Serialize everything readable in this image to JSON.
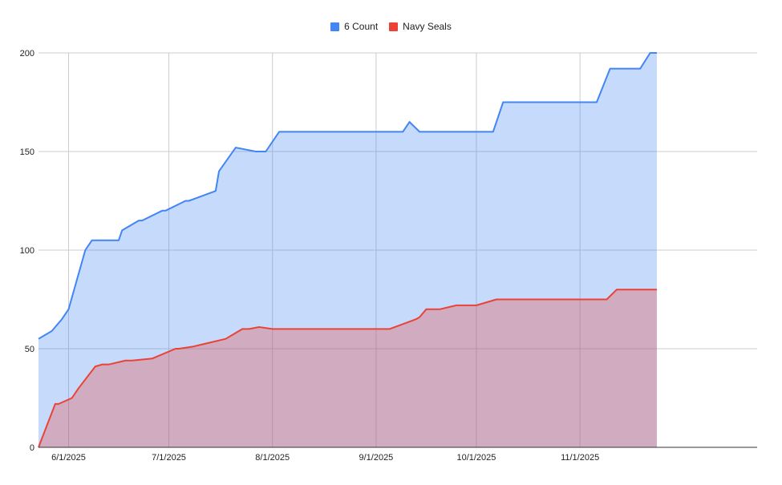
{
  "legend": [
    {
      "label": "6 Count",
      "color": "#4285f4"
    },
    {
      "label": "Navy Seals",
      "color": "#ea4335"
    }
  ],
  "chart_data": {
    "type": "area",
    "title": "",
    "xlabel": "",
    "ylabel": "",
    "ylim": [
      0,
      200
    ],
    "xlim": [
      "2025-05-23",
      "2025-12-24"
    ],
    "y_ticks": [
      "0",
      "50",
      "100",
      "150",
      "200"
    ],
    "x_ticks": [
      {
        "date": "2025-06-01",
        "label": "6/1/2025"
      },
      {
        "date": "2025-07-01",
        "label": "7/1/2025"
      },
      {
        "date": "2025-08-01",
        "label": "8/1/2025"
      },
      {
        "date": "2025-09-01",
        "label": "9/1/2025"
      },
      {
        "date": "2025-10-01",
        "label": "10/1/2025"
      },
      {
        "date": "2025-11-01",
        "label": "11/1/2025"
      }
    ],
    "grid": true,
    "legend_position": "top",
    "series": [
      {
        "name": "6 Count",
        "color": "#4285f4",
        "fill": "#c6d9f9",
        "points": [
          [
            "2025-05-23",
            55
          ],
          [
            "2025-05-27",
            59
          ],
          [
            "2025-05-30",
            65
          ],
          [
            "2025-06-01",
            70
          ],
          [
            "2025-06-06",
            100
          ],
          [
            "2025-06-08",
            105
          ],
          [
            "2025-06-16",
            105
          ],
          [
            "2025-06-17",
            110
          ],
          [
            "2025-06-22",
            115
          ],
          [
            "2025-06-23",
            115
          ],
          [
            "2025-06-29",
            120
          ],
          [
            "2025-06-30",
            120
          ],
          [
            "2025-07-06",
            125
          ],
          [
            "2025-07-07",
            125
          ],
          [
            "2025-07-15",
            130
          ],
          [
            "2025-07-16",
            140
          ],
          [
            "2025-07-21",
            152
          ],
          [
            "2025-07-27",
            150
          ],
          [
            "2025-07-30",
            150
          ],
          [
            "2025-08-03",
            160
          ],
          [
            "2025-09-09",
            160
          ],
          [
            "2025-09-11",
            165
          ],
          [
            "2025-09-14",
            160
          ],
          [
            "2025-10-06",
            160
          ],
          [
            "2025-10-09",
            175
          ],
          [
            "2025-11-06",
            175
          ],
          [
            "2025-11-10",
            192
          ],
          [
            "2025-11-19",
            192
          ],
          [
            "2025-11-22",
            200
          ],
          [
            "2025-11-24",
            200
          ]
        ]
      },
      {
        "name": "Navy Seals",
        "color": "#ea4335",
        "fill": "#d2abc0",
        "points": [
          [
            "2025-05-23",
            0
          ],
          [
            "2025-05-28",
            22
          ],
          [
            "2025-05-29",
            22
          ],
          [
            "2025-06-02",
            25
          ],
          [
            "2025-06-04",
            30
          ],
          [
            "2025-06-09",
            41
          ],
          [
            "2025-06-11",
            42
          ],
          [
            "2025-06-13",
            42
          ],
          [
            "2025-06-18",
            44
          ],
          [
            "2025-06-20",
            44
          ],
          [
            "2025-06-26",
            45
          ],
          [
            "2025-07-03",
            50
          ],
          [
            "2025-07-04",
            50
          ],
          [
            "2025-07-08",
            51
          ],
          [
            "2025-07-13",
            53
          ],
          [
            "2025-07-18",
            55
          ],
          [
            "2025-07-20",
            57
          ],
          [
            "2025-07-23",
            60
          ],
          [
            "2025-07-25",
            60
          ],
          [
            "2025-07-28",
            61
          ],
          [
            "2025-08-01",
            60
          ],
          [
            "2025-09-05",
            60
          ],
          [
            "2025-09-13",
            65
          ],
          [
            "2025-09-14",
            66
          ],
          [
            "2025-09-16",
            70
          ],
          [
            "2025-09-20",
            70
          ],
          [
            "2025-09-25",
            72
          ],
          [
            "2025-10-01",
            72
          ],
          [
            "2025-10-07",
            75
          ],
          [
            "2025-11-09",
            75
          ],
          [
            "2025-11-12",
            80
          ],
          [
            "2025-11-24",
            80
          ]
        ]
      }
    ]
  }
}
